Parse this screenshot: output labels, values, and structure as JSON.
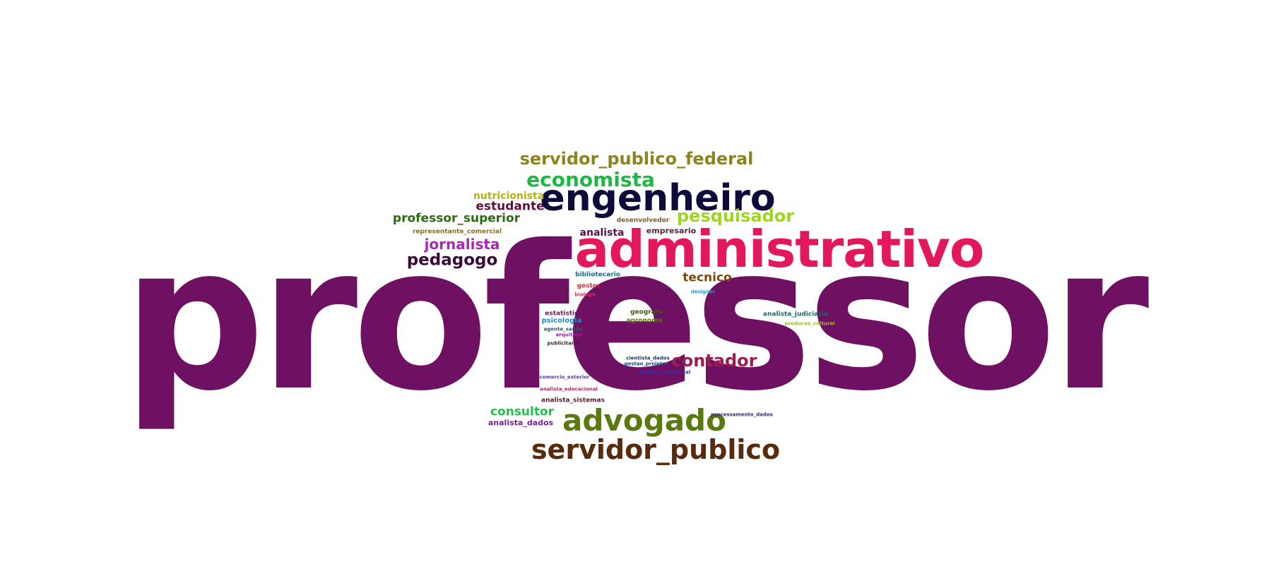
{
  "words": [
    {
      "text": "professor",
      "color": "#6f1162"
    },
    {
      "text": "administrativo",
      "color": "#e2185a"
    },
    {
      "text": "engenheiro",
      "color": "#0c0b3a"
    },
    {
      "text": "servidor_publico",
      "color": "#5a2a0c"
    },
    {
      "text": "advogado",
      "color": "#5a7a10"
    },
    {
      "text": "servidor_publico_federal",
      "color": "#8c8420"
    },
    {
      "text": "economista",
      "color": "#1fb845"
    },
    {
      "text": "pesquisador",
      "color": "#9ed61a"
    },
    {
      "text": "contador",
      "color": "#9a1e52"
    },
    {
      "text": "nutricionista",
      "color": "#b8b01a"
    },
    {
      "text": "estudante",
      "color": "#5c1040"
    },
    {
      "text": "professor_superior",
      "color": "#2a6a10"
    },
    {
      "text": "representante_comercial",
      "color": "#8a6a1a"
    },
    {
      "text": "jornalista",
      "color": "#a22cb0"
    },
    {
      "text": "pedagogo",
      "color": "#3a0a3a"
    },
    {
      "text": "analista",
      "color": "#5a1050"
    },
    {
      "text": "desenvolvedor",
      "color": "#7a5a2a"
    },
    {
      "text": "empresario",
      "color": "#5a2030"
    },
    {
      "text": "tecnico",
      "color": "#7a4a0c"
    },
    {
      "text": "bibliotecario",
      "color": "#1a6a8a"
    },
    {
      "text": "gestor",
      "color": "#c0303a"
    },
    {
      "text": "biologo",
      "color": "#d0305a"
    },
    {
      "text": "designer",
      "color": "#20a0c0"
    },
    {
      "text": "estatistico",
      "color": "#6a1a5a"
    },
    {
      "text": "psicologia",
      "color": "#2a8ac0"
    },
    {
      "text": "agente_saude",
      "color": "#2a5a6a"
    },
    {
      "text": "arquiteto",
      "color": "#9a20a0"
    },
    {
      "text": "publicitario",
      "color": "#3a2a3a"
    },
    {
      "text": "geografo",
      "color": "#3a5a10"
    },
    {
      "text": "agronomo",
      "color": "#5a7a10"
    },
    {
      "text": "analista_judiciario",
      "color": "#1a6a6a"
    },
    {
      "text": "producao_cultural",
      "color": "#9ac010"
    },
    {
      "text": "cientista_dados",
      "color": "#1a3a6a"
    },
    {
      "text": "gestao_projetos",
      "color": "#1a4a8a"
    },
    {
      "text": "analista_ambiental",
      "color": "#3a2aa0"
    },
    {
      "text": "comercio_exterior",
      "color": "#5a3ab0"
    },
    {
      "text": "analista_edecacional",
      "color": "#b02a6a"
    },
    {
      "text": "analista_sistemas",
      "color": "#5a1a30"
    },
    {
      "text": "consultor",
      "color": "#20c050"
    },
    {
      "text": "analista_dados",
      "color": "#7a1aa0"
    },
    {
      "text": "processamento_dados",
      "color": "#3a2a6a"
    }
  ]
}
